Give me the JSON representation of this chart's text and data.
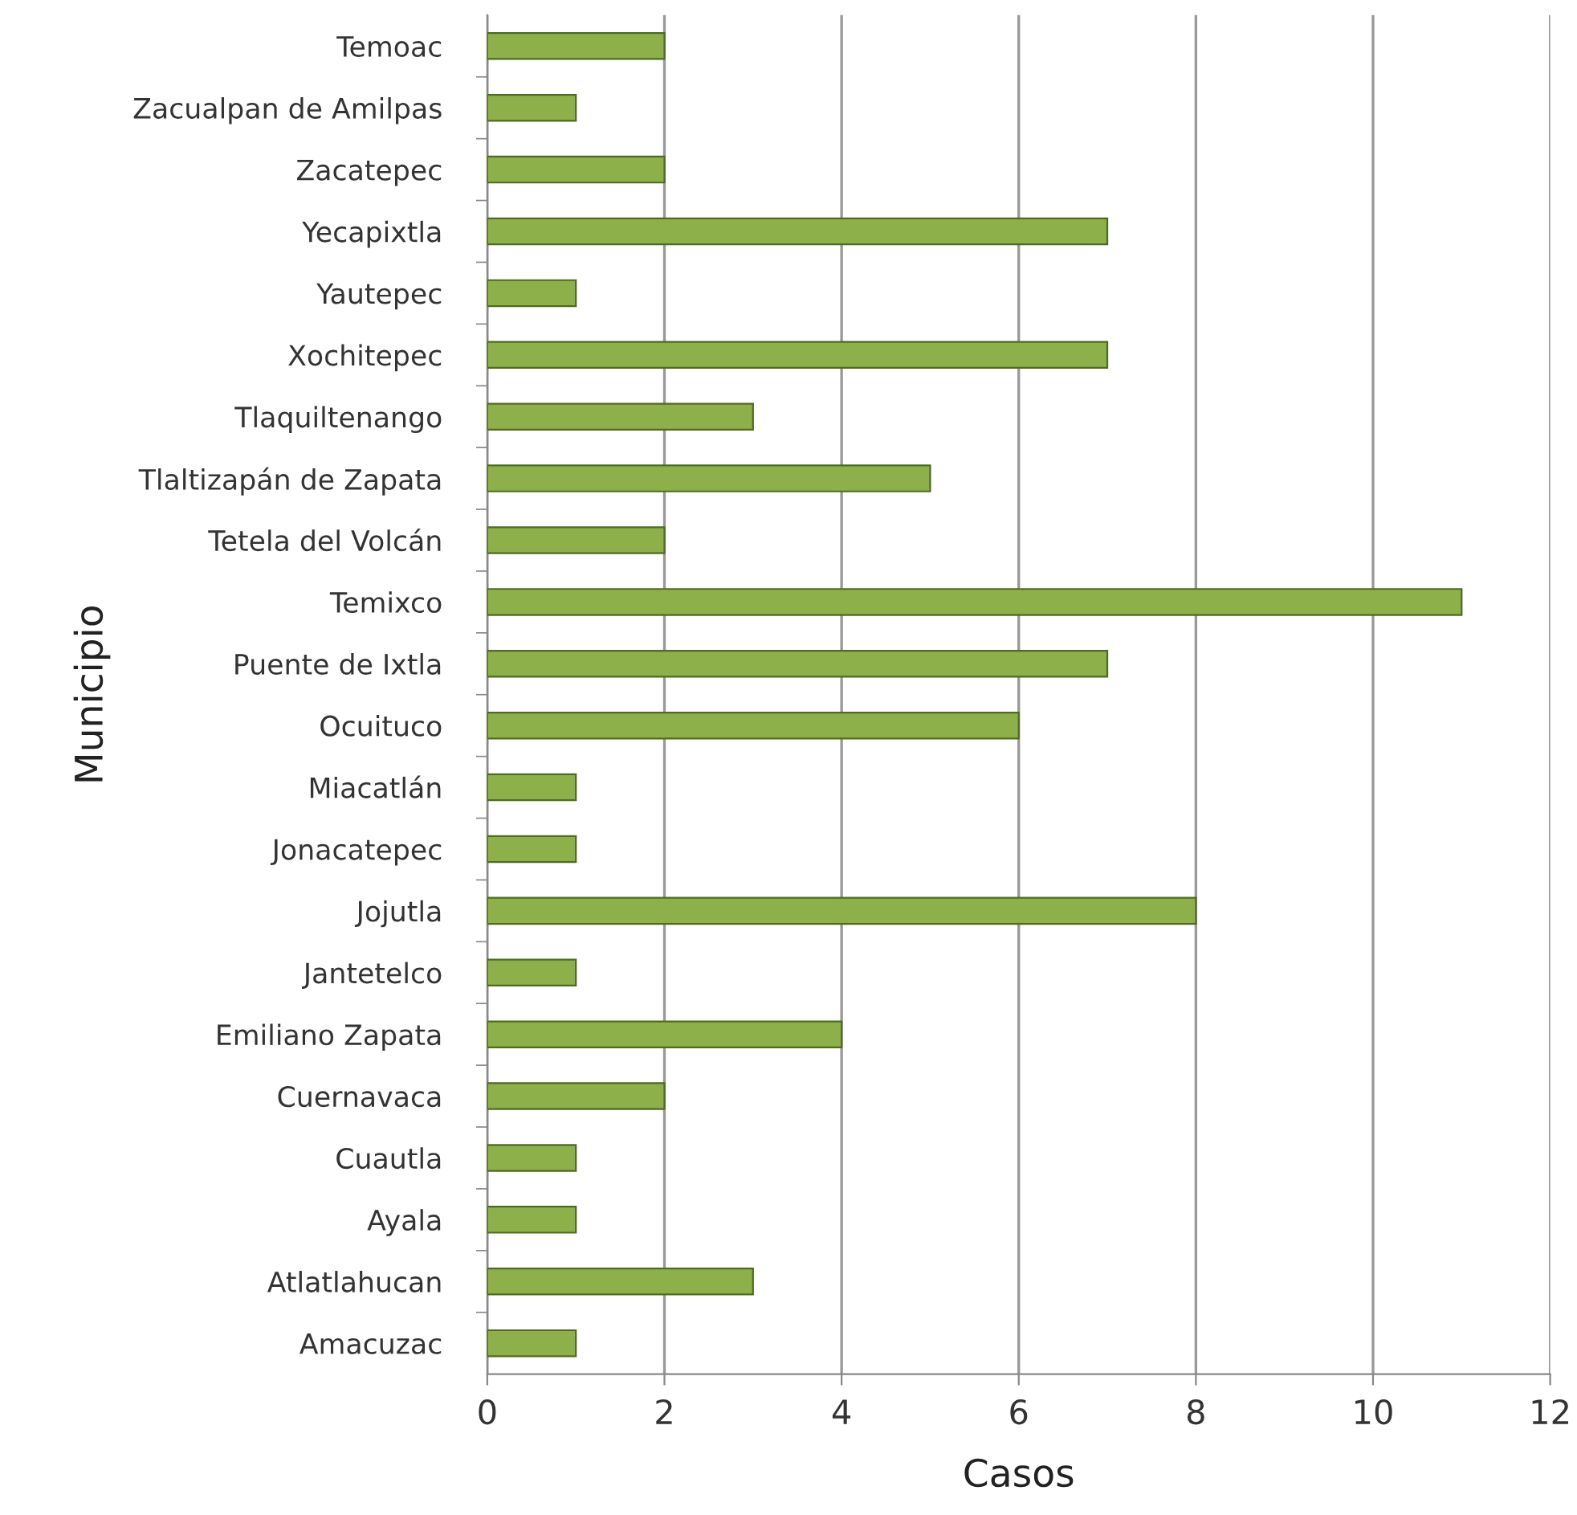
{
  "chart_data": {
    "type": "bar",
    "orientation": "horizontal",
    "xlabel": "Casos",
    "ylabel": "Municipio",
    "categories": [
      "Temoac",
      "Zacualpan de Amilpas",
      "Zacatepec",
      "Yecapixtla",
      "Yautepec",
      "Xochitepec",
      "Tlaquiltenango",
      "Tlaltizapán de Zapata",
      "Tetela del Volcán",
      "Temixco",
      "Puente de Ixtla",
      "Ocuituco",
      "Miacatlán",
      "Jonacatepec",
      "Jojutla",
      "Jantetelco",
      "Emiliano Zapata",
      "Cuernavaca",
      "Cuautla",
      "Ayala",
      "Atlatlahucan",
      "Amacuzac"
    ],
    "values": [
      2,
      1,
      2,
      7,
      1,
      7,
      3,
      5,
      2,
      11,
      7,
      6,
      1,
      1,
      8,
      1,
      4,
      2,
      1,
      1,
      3,
      1
    ],
    "color": "#8db04a",
    "xlim": [
      0,
      12
    ],
    "xticks": [
      0,
      2,
      4,
      6,
      8,
      10,
      12
    ],
    "grid": "x",
    "legend": false
  }
}
